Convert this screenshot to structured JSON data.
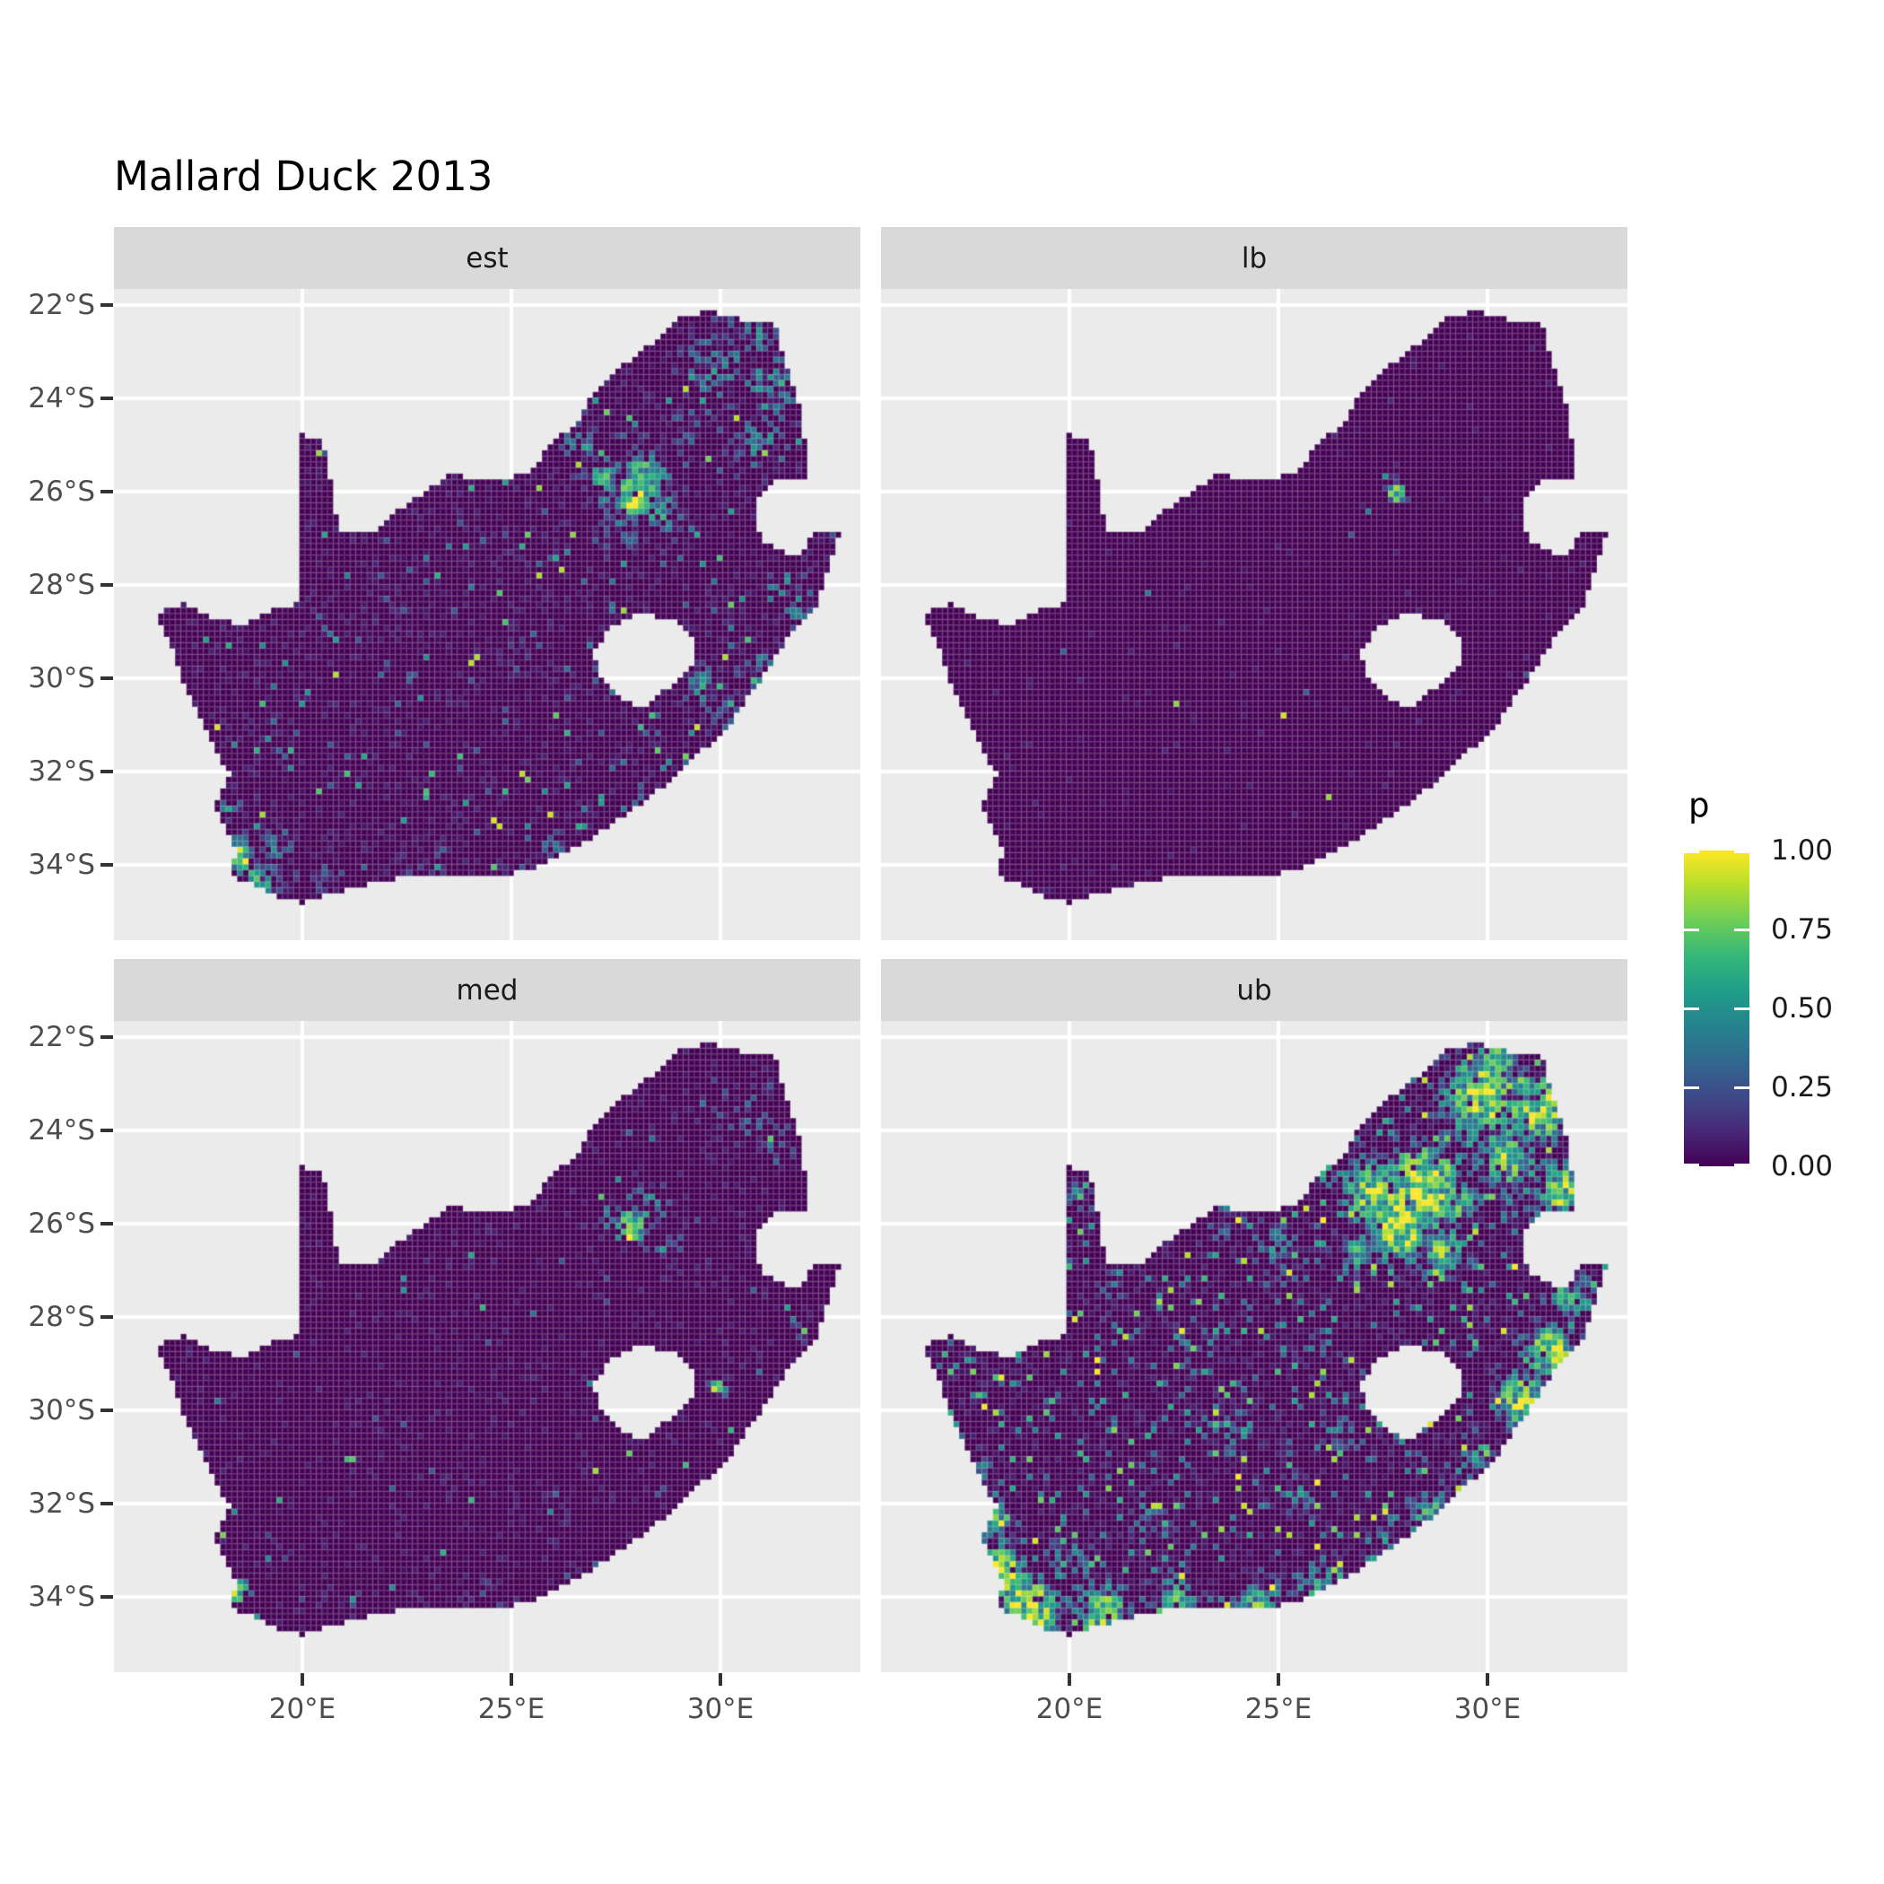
{
  "title": "Mallard Duck 2013",
  "chart_data": {
    "type": "heatmap",
    "title": "Mallard Duck 2013",
    "subtitle": "",
    "region": "South Africa gridded occupancy probability raster, faceted by estimate type",
    "facets": [
      "est",
      "lb",
      "med",
      "ub"
    ],
    "facet_grid": [
      [
        "est",
        "lb"
      ],
      [
        "med",
        "ub"
      ]
    ],
    "legend": {
      "title": "p",
      "breaks": [
        1.0,
        0.75,
        0.5,
        0.25,
        0.0
      ],
      "labels": [
        "1.00",
        "0.75",
        "0.50",
        "0.25",
        "0.00"
      ],
      "range": [
        0,
        1
      ],
      "position": "right"
    },
    "x_axis": {
      "ticks_deg": [
        20,
        25,
        30
      ],
      "labels": [
        "20°E",
        "25°E",
        "30°E"
      ],
      "range_deg": [
        15.5,
        33.35
      ]
    },
    "y_axis": {
      "ticks_deg": [
        -22,
        -24,
        -26,
        -28,
        -30,
        -32,
        -34
      ],
      "labels": [
        "22°S",
        "24°S",
        "26°S",
        "28°S",
        "30°S",
        "32°S",
        "34°S"
      ],
      "range_deg": [
        -36.1,
        -21.65
      ]
    },
    "grid": "white major gridlines over gray panel, drawn under raster",
    "colormap": {
      "name": "viridis",
      "stops": [
        "#440154",
        "#482878",
        "#3e4a89",
        "#31688e",
        "#26828e",
        "#1f9e89",
        "#35b779",
        "#6ece58",
        "#b5de2b",
        "#fde725"
      ]
    },
    "cell_deg": {
      "lon": 0.135,
      "lat": 0.125
    },
    "outline_lonlat": [
      [
        16.45,
        -28.6
      ],
      [
        17.2,
        -28.4
      ],
      [
        17.9,
        -28.75
      ],
      [
        18.6,
        -28.85
      ],
      [
        19.3,
        -28.5
      ],
      [
        19.98,
        -28.4
      ],
      [
        19.98,
        -24.77
      ],
      [
        20.5,
        -24.95
      ],
      [
        20.65,
        -25.6
      ],
      [
        20.72,
        -26.2
      ],
      [
        20.88,
        -26.8
      ],
      [
        21.7,
        -26.85
      ],
      [
        22.35,
        -26.35
      ],
      [
        22.95,
        -26.0
      ],
      [
        23.55,
        -25.6
      ],
      [
        24.25,
        -25.75
      ],
      [
        25.05,
        -25.7
      ],
      [
        25.65,
        -25.45
      ],
      [
        25.95,
        -24.9
      ],
      [
        26.55,
        -24.6
      ],
      [
        26.95,
        -23.9
      ],
      [
        27.35,
        -23.55
      ],
      [
        28.0,
        -23.05
      ],
      [
        28.4,
        -22.8
      ],
      [
        29.1,
        -22.2
      ],
      [
        29.85,
        -22.15
      ],
      [
        30.45,
        -22.3
      ],
      [
        31.3,
        -22.35
      ],
      [
        31.6,
        -23.4
      ],
      [
        31.9,
        -24.2
      ],
      [
        32.05,
        -25.1
      ],
      [
        32.05,
        -25.8
      ],
      [
        31.45,
        -25.72
      ],
      [
        30.98,
        -26.0
      ],
      [
        30.82,
        -26.5
      ],
      [
        30.98,
        -27.05
      ],
      [
        31.55,
        -27.32
      ],
      [
        31.98,
        -27.3
      ],
      [
        32.18,
        -26.86
      ],
      [
        32.9,
        -26.86
      ],
      [
        32.58,
        -27.6
      ],
      [
        32.32,
        -28.4
      ],
      [
        31.72,
        -29.0
      ],
      [
        31.05,
        -29.9
      ],
      [
        30.3,
        -30.9
      ],
      [
        29.5,
        -31.62
      ],
      [
        28.5,
        -32.42
      ],
      [
        27.4,
        -33.12
      ],
      [
        26.4,
        -33.72
      ],
      [
        25.65,
        -34.02
      ],
      [
        24.8,
        -34.25
      ],
      [
        23.6,
        -34.18
      ],
      [
        22.3,
        -34.28
      ],
      [
        21.2,
        -34.48
      ],
      [
        20.0,
        -34.83
      ],
      [
        19.3,
        -34.65
      ],
      [
        18.85,
        -34.42
      ],
      [
        18.45,
        -34.36
      ],
      [
        18.32,
        -34.05
      ],
      [
        18.46,
        -33.7
      ],
      [
        18.2,
        -33.3
      ],
      [
        17.92,
        -32.7
      ],
      [
        18.25,
        -32.05
      ],
      [
        17.75,
        -31.2
      ],
      [
        17.25,
        -30.3
      ],
      [
        16.9,
        -29.4
      ]
    ],
    "lesotho_hole_lonlat": [
      [
        28.15,
        -28.62
      ],
      [
        28.9,
        -28.78
      ],
      [
        29.35,
        -29.1
      ],
      [
        29.45,
        -29.5
      ],
      [
        29.1,
        -29.95
      ],
      [
        28.55,
        -30.35
      ],
      [
        28.1,
        -30.65
      ],
      [
        27.55,
        -30.4
      ],
      [
        27.05,
        -29.95
      ],
      [
        27.0,
        -29.4
      ],
      [
        27.35,
        -28.95
      ],
      [
        27.75,
        -28.72
      ]
    ],
    "facet_fields": {
      "est": {
        "seed": 11,
        "dim": 0.24,
        "speckle_p": 0.032,
        "speckle_range": [
          0.25,
          0.95
        ],
        "hotspots": [
          [
            27.9,
            -26.15,
            0.55,
            1.0
          ],
          [
            28.15,
            -25.7,
            0.9,
            0.7
          ],
          [
            27.2,
            -25.75,
            0.8,
            0.5
          ],
          [
            28.6,
            -26.5,
            0.8,
            0.5
          ],
          [
            27.6,
            -26.9,
            0.7,
            0.45
          ],
          [
            26.8,
            -24.9,
            1.2,
            0.35
          ],
          [
            30.0,
            -23.3,
            1.3,
            0.45
          ],
          [
            31.2,
            -23.8,
            1.1,
            0.5
          ],
          [
            30.8,
            -22.6,
            0.9,
            0.4
          ],
          [
            31.0,
            -25.0,
            1.0,
            0.45
          ],
          [
            29.4,
            -24.6,
            1.0,
            0.35
          ],
          [
            32.0,
            -28.5,
            0.6,
            0.55
          ],
          [
            31.6,
            -28.0,
            0.7,
            0.4
          ],
          [
            31.0,
            -29.7,
            0.8,
            0.45
          ],
          [
            30.1,
            -30.8,
            0.6,
            0.4
          ],
          [
            29.6,
            -30.2,
            0.6,
            0.5
          ],
          [
            28.1,
            -32.6,
            0.5,
            0.35
          ],
          [
            26.0,
            -33.7,
            0.5,
            0.4
          ],
          [
            18.5,
            -33.8,
            0.5,
            0.95
          ],
          [
            18.9,
            -34.4,
            0.7,
            0.6
          ],
          [
            19.4,
            -33.6,
            0.6,
            0.45
          ],
          [
            18.2,
            -32.8,
            0.45,
            0.5
          ],
          [
            20.5,
            -34.3,
            0.8,
            0.35
          ],
          [
            23.0,
            -34.05,
            0.8,
            0.3
          ],
          [
            25.2,
            -29.3,
            0.7,
            0.2
          ],
          [
            22.5,
            -28.3,
            0.8,
            0.15
          ],
          [
            24.8,
            -26.9,
            0.6,
            0.25
          ],
          [
            27.0,
            -30.0,
            0.6,
            0.25
          ]
        ]
      },
      "lb": {
        "seed": 22,
        "dim": 0.03,
        "speckle_p": 0.0012,
        "speckle_range": [
          0.3,
          1.0
        ],
        "hotspots": [
          [
            27.85,
            -26.05,
            0.32,
            0.95
          ],
          [
            27.55,
            -25.75,
            0.22,
            0.5
          ],
          [
            26.7,
            -26.85,
            0.1,
            0.9
          ],
          [
            27.15,
            -26.4,
            0.1,
            0.8
          ],
          [
            18.4,
            -33.6,
            0.12,
            0.5
          ],
          [
            18.3,
            -34.45,
            0.1,
            0.85
          ],
          [
            30.9,
            -29.9,
            0.1,
            0.4
          ]
        ]
      },
      "med": {
        "seed": 33,
        "dim": 0.13,
        "speckle_p": 0.008,
        "speckle_range": [
          0.2,
          0.9
        ],
        "hotspots": [
          [
            27.9,
            -26.1,
            0.5,
            1.0
          ],
          [
            28.25,
            -25.6,
            0.7,
            0.5
          ],
          [
            27.3,
            -25.9,
            0.6,
            0.4
          ],
          [
            28.7,
            -26.35,
            0.6,
            0.35
          ],
          [
            30.5,
            -23.7,
            1.2,
            0.3
          ],
          [
            31.3,
            -24.2,
            1.0,
            0.35
          ],
          [
            31.9,
            -28.2,
            0.4,
            0.45
          ],
          [
            29.95,
            -29.5,
            0.3,
            0.9
          ],
          [
            18.45,
            -33.9,
            0.4,
            0.8
          ],
          [
            18.85,
            -34.45,
            0.5,
            0.5
          ],
          [
            18.3,
            -32.95,
            0.25,
            0.45
          ],
          [
            24.5,
            -34.1,
            1.1,
            0.22
          ],
          [
            21.0,
            -34.35,
            0.8,
            0.25
          ],
          [
            26.4,
            -33.75,
            0.5,
            0.3
          ]
        ]
      },
      "ub": {
        "seed": 44,
        "dim": 0.3,
        "speckle_p": 0.085,
        "speckle_range": [
          0.3,
          1.0
        ],
        "hotspots": [
          [
            27.9,
            -26.0,
            1.05,
            1.0
          ],
          [
            28.5,
            -25.2,
            1.3,
            0.95
          ],
          [
            27.2,
            -25.3,
            1.0,
            0.8
          ],
          [
            28.9,
            -26.6,
            0.9,
            0.7
          ],
          [
            26.9,
            -26.6,
            0.8,
            0.55
          ],
          [
            29.8,
            -23.2,
            1.4,
            0.8
          ],
          [
            31.2,
            -23.5,
            1.2,
            0.85
          ],
          [
            30.3,
            -22.5,
            0.8,
            0.7
          ],
          [
            30.5,
            -24.6,
            1.2,
            0.7
          ],
          [
            31.8,
            -25.3,
            0.9,
            0.8
          ],
          [
            29.3,
            -25.6,
            0.9,
            0.6
          ],
          [
            31.5,
            -28.7,
            0.9,
            0.85
          ],
          [
            30.8,
            -29.8,
            0.9,
            0.8
          ],
          [
            32.0,
            -27.6,
            0.7,
            0.7
          ],
          [
            29.8,
            -31.0,
            0.7,
            0.6
          ],
          [
            28.6,
            -32.2,
            0.8,
            0.6
          ],
          [
            27.5,
            -33.0,
            0.7,
            0.55
          ],
          [
            26.0,
            -33.8,
            0.8,
            0.6
          ],
          [
            24.5,
            -34.2,
            0.9,
            0.65
          ],
          [
            22.5,
            -34.1,
            0.9,
            0.6
          ],
          [
            20.8,
            -34.4,
            1.0,
            0.75
          ],
          [
            19.0,
            -34.3,
            1.0,
            1.0
          ],
          [
            18.4,
            -33.5,
            0.8,
            0.95
          ],
          [
            18.2,
            -32.4,
            0.7,
            0.7
          ],
          [
            17.8,
            -31.3,
            0.5,
            0.5
          ],
          [
            20.0,
            -33.3,
            0.8,
            0.5
          ],
          [
            22.0,
            -32.5,
            0.8,
            0.4
          ],
          [
            24.0,
            -30.5,
            0.9,
            0.4
          ],
          [
            26.5,
            -30.5,
            0.8,
            0.45
          ],
          [
            25.5,
            -31.8,
            0.7,
            0.45
          ],
          [
            23.0,
            -28.5,
            0.9,
            0.35
          ],
          [
            21.0,
            -27.5,
            0.8,
            0.35
          ],
          [
            25.0,
            -26.5,
            0.8,
            0.45
          ],
          [
            20.3,
            -25.4,
            0.45,
            0.55
          ],
          [
            23.5,
            -25.8,
            0.8,
            0.4
          ],
          [
            26.0,
            -28.6,
            0.7,
            0.35
          ],
          [
            28.2,
            -30.6,
            0.6,
            0.5
          ]
        ]
      }
    }
  },
  "theme": {
    "background": "#ffffff",
    "panel_bg": "#ebebeb",
    "strip_bg": "#d9d9d9",
    "gridline": "#ffffff",
    "axis_text": "#4d4d4d",
    "tick_mark": "#333333",
    "title_color": "#000000",
    "strip_text": "#1a1a1a",
    "legend_text": "#1a1a1a",
    "base_fill": "#440154",
    "cell_grid_line": "rgba(255,255,255,0.13)"
  }
}
